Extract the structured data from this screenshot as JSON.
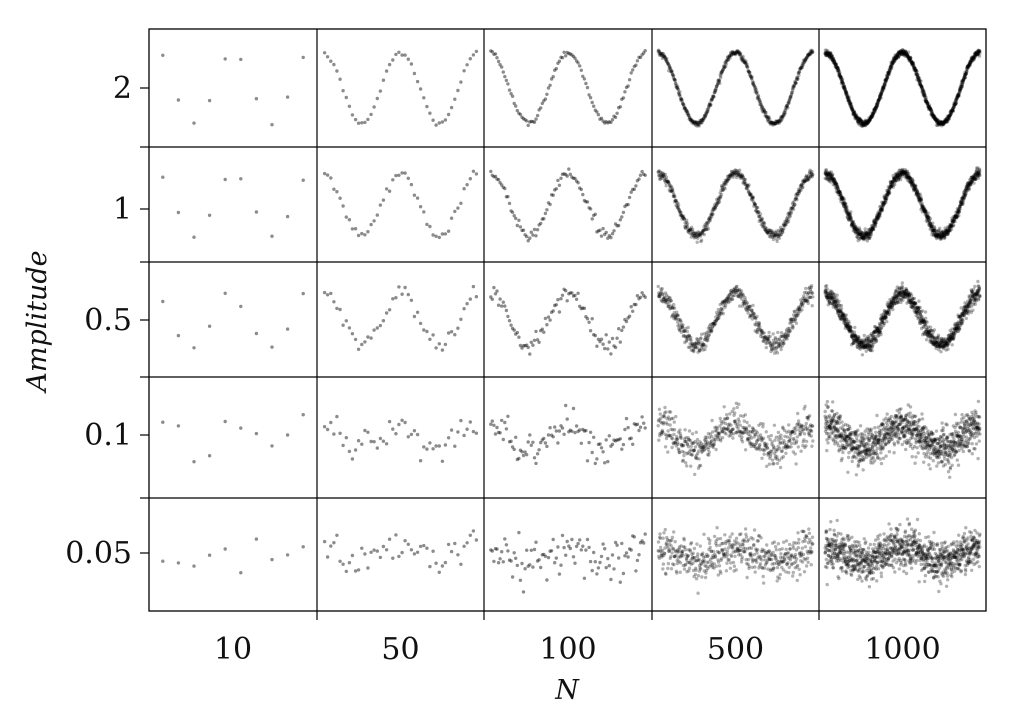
{
  "chart_data": {
    "type": "scatter",
    "layout": "grid of small multiples",
    "xlabel": "N",
    "ylabel": "Amplitude",
    "columns": [
      "10",
      "50",
      "100",
      "500",
      "1000"
    ],
    "rows": [
      "2",
      "1",
      "0.5",
      "0.1",
      "0.05"
    ],
    "column_sample_counts": [
      10,
      50,
      100,
      500,
      1000
    ],
    "row_amplitudes": [
      2,
      1,
      0.5,
      0.1,
      0.05
    ],
    "signal": {
      "shape": "sine",
      "periods_per_panel": 2,
      "noise_sd": 0.08
    },
    "marker_color": "#000000",
    "grid": true,
    "legend": "none"
  }
}
